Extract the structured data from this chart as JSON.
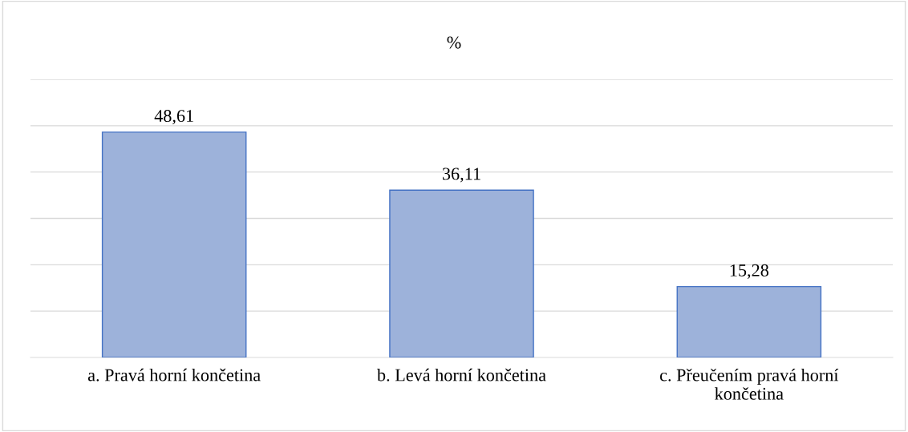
{
  "chart_data": {
    "type": "bar",
    "title": "%",
    "categories": [
      "a. Pravá horní končetina",
      "b. Levá horní končetina",
      "c. Přeučením pravá horní končetina"
    ],
    "values": [
      48.61,
      36.11,
      15.28
    ],
    "color": "#9db2da",
    "value_labels": [
      "48,61",
      "36,11",
      "15,28"
    ],
    "tick_labels": "x",
    "grid": "y",
    "legend": false
  }
}
